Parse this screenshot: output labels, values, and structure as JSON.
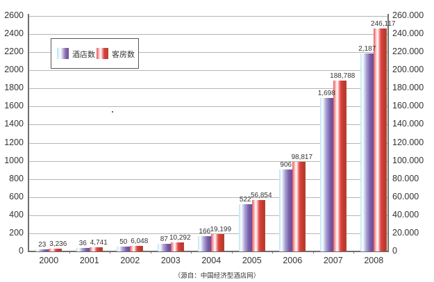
{
  "chart_data": {
    "type": "bar",
    "title": "",
    "xlabel": "",
    "ylabel": "",
    "categories": [
      "2000",
      "2001",
      "2002",
      "2003",
      "2004",
      "2005",
      "2006",
      "2007",
      "2008"
    ],
    "series": [
      {
        "name": "酒店数",
        "axis": "left",
        "values": [
          23,
          36,
          50,
          87,
          166,
          522,
          906,
          1698,
          2187
        ],
        "labels": [
          "23",
          "36",
          "50",
          "87",
          "166",
          "522",
          "906",
          "1,698",
          "2,187"
        ]
      },
      {
        "name": "客房数",
        "axis": "right",
        "values": [
          3236,
          4741,
          6048,
          10292,
          19199,
          56854,
          98817,
          188788,
          246117
        ],
        "labels": [
          "3,236",
          "4,741",
          "6,048",
          "10,292",
          "19,199",
          "56,854",
          "98,817",
          "188,788",
          "246,117"
        ]
      }
    ],
    "ylim": [
      0,
      2600
    ],
    "ylim_right": [
      0,
      260000
    ],
    "left_ticks": [
      "0",
      "200",
      "400",
      "600",
      "800",
      "1000",
      "1200",
      "1400",
      "1600",
      "1800",
      "2000",
      "2200",
      "2400",
      "2600"
    ],
    "right_ticks": [
      "0",
      "20.000",
      "40.000",
      "60.000",
      "80.000",
      "100.000",
      "120.000",
      "140.000",
      "160.000",
      "180.000",
      "200.000",
      "220.000",
      "240.000",
      "260.000"
    ],
    "grid": true,
    "legend_position": "upper-left inside",
    "source_note": "（源自：中国经济型酒店网）",
    "colors": {
      "hotels": "#7a5ea8",
      "rooms": "#c0392b"
    }
  },
  "legend": {
    "hotels_label": "酒店数",
    "rooms_label": "客房数"
  },
  "source": "（源自：中国经济型酒店网）"
}
